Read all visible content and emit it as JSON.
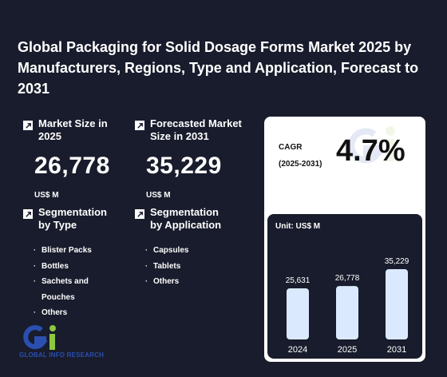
{
  "title": "Global Packaging for Solid Dosage Forms Market 2025 by Manufacturers, Regions, Type and Application, Forecast to 2031",
  "market_size": {
    "label": "Market Size in 2025",
    "value": "26,778",
    "unit": "US$ M",
    "icon": "arrow-up-right-icon"
  },
  "forecast_size": {
    "label": "Forecasted Market Size in 2031",
    "value": "35,229",
    "unit": "US$ M",
    "icon": "arrow-up-right-icon"
  },
  "seg_type": {
    "label": "Segmentation by Type",
    "items": [
      "Blister Packs",
      "Bottles",
      "Sachets and Pouches",
      "Others"
    ]
  },
  "seg_app": {
    "label": "Segmentation by Application",
    "items": [
      "Capsules",
      "Tablets",
      "Others"
    ]
  },
  "cagr": {
    "label": "CAGR",
    "period": "(2025-2031)",
    "value": "4.7%"
  },
  "logo": {
    "text": "GLOBAL INFO RESEARCH",
    "mark": "Gi"
  },
  "colors": {
    "background": "#181c2c",
    "bar": "#dbe9ff",
    "logo_blue": "#2a4fb0",
    "logo_green": "#8dc63f"
  },
  "chart_data": {
    "type": "bar",
    "unit_label": "Unit: US$ M",
    "categories": [
      "2024",
      "2025",
      "2031"
    ],
    "values": [
      25631,
      26778,
      35229
    ],
    "value_labels": [
      "25,631",
      "26,778",
      "35,229"
    ]
  }
}
